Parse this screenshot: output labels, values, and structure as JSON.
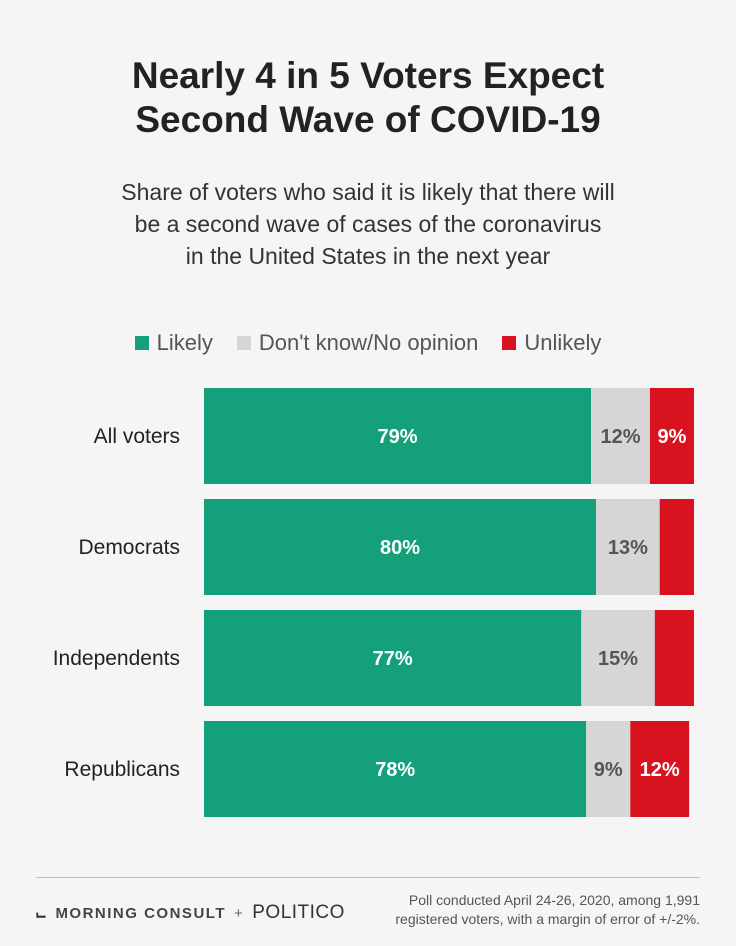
{
  "title_line1": "Nearly 4 in 5 Voters Expect",
  "title_line2": "Second Wave of COVID-19",
  "subtitle_line1": "Share of voters who said it is likely that there will",
  "subtitle_line2": "be a second wave of cases of the coronavirus",
  "subtitle_line3": "in the United States in the next year",
  "colors": {
    "likely": "#14a07a",
    "dont_know": "#d6d6d6",
    "unlikely": "#d8121f",
    "label_dark": "#555555",
    "label_light": "#ffffff"
  },
  "chart_data": {
    "type": "bar",
    "orientation": "horizontal",
    "stacked": true,
    "normalized": true,
    "title": "Nearly 4 in 5 Voters Expect Second Wave of COVID-19",
    "categories": [
      "All voters",
      "Democrats",
      "Independents",
      "Republicans"
    ],
    "series": [
      {
        "name": "Likely",
        "values": [
          79,
          80,
          77,
          78
        ],
        "labels": [
          "79%",
          "80%",
          "77%",
          "78%"
        ]
      },
      {
        "name": "Don't know/No opinion",
        "values": [
          12,
          13,
          15,
          9
        ],
        "labels": [
          "12%",
          "13%",
          "15%",
          "9%"
        ]
      },
      {
        "name": "Unlikely",
        "values": [
          9,
          7,
          8,
          12
        ],
        "labels": [
          "9%",
          "",
          "",
          "12%"
        ]
      }
    ],
    "xlim": [
      0,
      100
    ],
    "legend": "top-center",
    "grid": false
  },
  "footer": {
    "brand_morning": "MORNING CONSULT",
    "brand_plus": "+",
    "brand_politico": "POLITICO",
    "note_line1": "Poll conducted April 24-26, 2020, among 1,991",
    "note_line2": "registered voters, with a margin of error of +/-2%."
  }
}
